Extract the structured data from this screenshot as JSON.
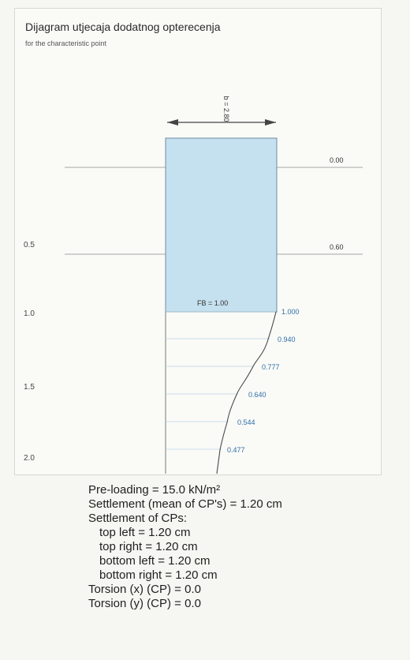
{
  "title": "Dijagram utjecaja dodatnog opterecenja",
  "subtitle": "for the characteristic point",
  "width_label": "b = 2.80",
  "depth_ticks": [
    "0.5",
    "1.0",
    "1.5",
    "2.0"
  ],
  "level_labels": [
    "0.00",
    "0.60"
  ],
  "fb_label": "FB = 1.00",
  "influence_values": [
    "1.000",
    "0.940",
    "0.777",
    "0.640",
    "0.544",
    "0.477"
  ],
  "colors": {
    "footing_fill": "#c5e0ee",
    "influence_blue": "#2f6fa8",
    "line_gray": "#777777"
  },
  "results": {
    "preloading": "Pre-loading = 15.0 kN/m²",
    "settlement_mean": "Settlement (mean of CP's) = 1.20 cm",
    "settlement_cps_header": "Settlement of CPs:",
    "top_left": "top left = 1.20 cm",
    "top_right": "top right = 1.20 cm",
    "bottom_left": "bottom left = 1.20 cm",
    "bottom_right": "bottom right = 1.20 cm",
    "torsion_x": "Torsion (x) (CP) = 0.0",
    "torsion_y": "Torsion (y) (CP) = 0.0"
  }
}
